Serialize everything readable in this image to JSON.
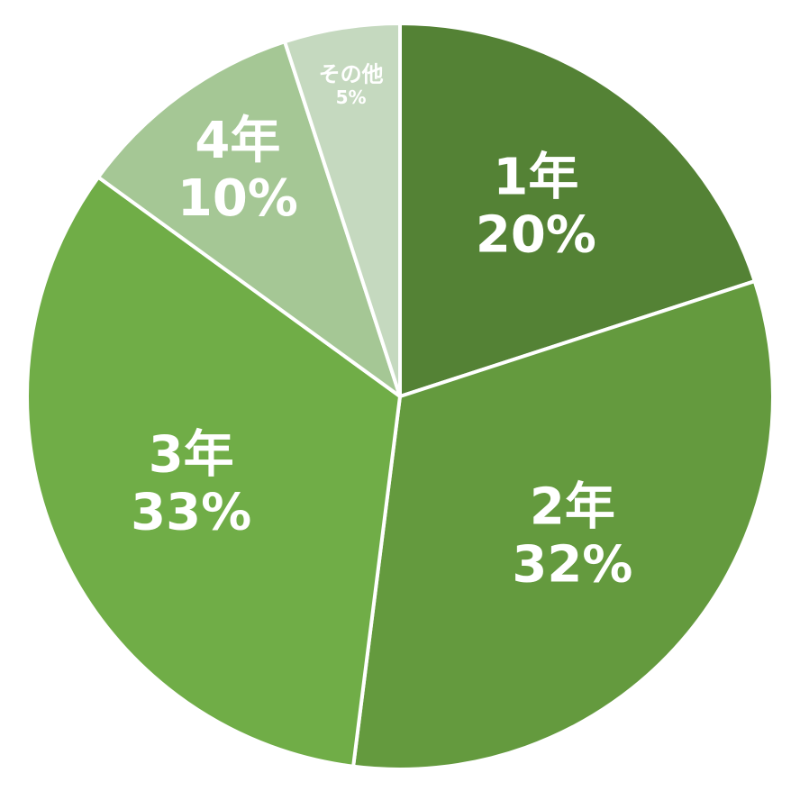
{
  "chart_data": {
    "type": "pie",
    "start_angle": "12 o'clock",
    "direction": "clockwise",
    "legend": "none",
    "slices": [
      {
        "name": "1年",
        "value": 20,
        "label": "20%",
        "color": "#548235"
      },
      {
        "name": "2年",
        "value": 32,
        "label": "32%",
        "color": "#649a3e"
      },
      {
        "name": "3年",
        "value": 33,
        "label": "33%",
        "color": "#70ad47"
      },
      {
        "name": "4年",
        "value": 10,
        "label": "10%",
        "color": "#a5c795"
      },
      {
        "name": "その他",
        "value": 5,
        "label": "5%",
        "color": "#c5d9bf"
      }
    ]
  }
}
